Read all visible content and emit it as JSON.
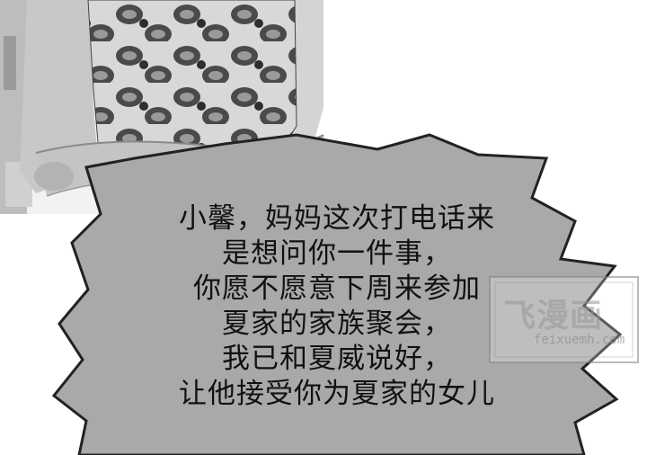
{
  "dialogue": {
    "lines": [
      "小馨，妈妈这次打电话来",
      "是想问你一件事，",
      "你愿不愿意下周来参加",
      "夏家的家族聚会，",
      "我已和夏威说好，",
      "让他接受你为夏家的女儿"
    ]
  },
  "watermark": {
    "title": "飞漫画",
    "url": "feixuemh.com"
  },
  "colors": {
    "bubble_fill": "#a9a9a9",
    "bubble_outline": "#222222",
    "text": "#111111"
  }
}
